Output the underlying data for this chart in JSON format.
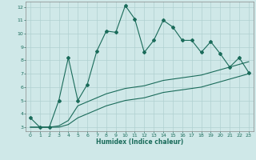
{
  "xlabel": "Humidex (Indice chaleur)",
  "ylabel": "",
  "xlim": [
    -0.5,
    23.5
  ],
  "ylim": [
    2.7,
    12.4
  ],
  "yticks": [
    3,
    4,
    5,
    6,
    7,
    8,
    9,
    10,
    11,
    12
  ],
  "xticks": [
    0,
    1,
    2,
    3,
    4,
    5,
    6,
    7,
    8,
    9,
    10,
    11,
    12,
    13,
    14,
    15,
    16,
    17,
    18,
    19,
    20,
    21,
    22,
    23
  ],
  "background_color": "#cfe8e8",
  "grid_color": "#b0d0d0",
  "line_color": "#1a6b5a",
  "series1_x": [
    0,
    1,
    2,
    3,
    4,
    5,
    6,
    7,
    8,
    9,
    10,
    11,
    12,
    13,
    14,
    15,
    16,
    17,
    18,
    19,
    20,
    21,
    22,
    23
  ],
  "series1_y": [
    3.7,
    3.0,
    3.0,
    5.0,
    8.2,
    5.0,
    6.2,
    8.7,
    10.2,
    10.1,
    12.1,
    11.1,
    8.6,
    9.5,
    11.0,
    10.5,
    9.5,
    9.5,
    8.6,
    9.4,
    8.5,
    7.5,
    8.2,
    7.1
  ],
  "series2_x": [
    0,
    1,
    2,
    3,
    4,
    5,
    6,
    7,
    8,
    9,
    10,
    11,
    12,
    13,
    14,
    15,
    16,
    17,
    18,
    19,
    20,
    21,
    22,
    23
  ],
  "series2_y": [
    3.0,
    3.0,
    3.0,
    3.1,
    3.5,
    4.6,
    4.9,
    5.2,
    5.5,
    5.7,
    5.9,
    6.0,
    6.1,
    6.3,
    6.5,
    6.6,
    6.7,
    6.8,
    6.9,
    7.1,
    7.3,
    7.5,
    7.7,
    7.9
  ],
  "series3_x": [
    0,
    1,
    2,
    3,
    4,
    5,
    6,
    7,
    8,
    9,
    10,
    11,
    12,
    13,
    14,
    15,
    16,
    17,
    18,
    19,
    20,
    21,
    22,
    23
  ],
  "series3_y": [
    3.0,
    3.0,
    3.0,
    3.0,
    3.2,
    3.7,
    4.0,
    4.3,
    4.6,
    4.8,
    5.0,
    5.1,
    5.2,
    5.4,
    5.6,
    5.7,
    5.8,
    5.9,
    6.0,
    6.2,
    6.4,
    6.6,
    6.8,
    7.0
  ]
}
